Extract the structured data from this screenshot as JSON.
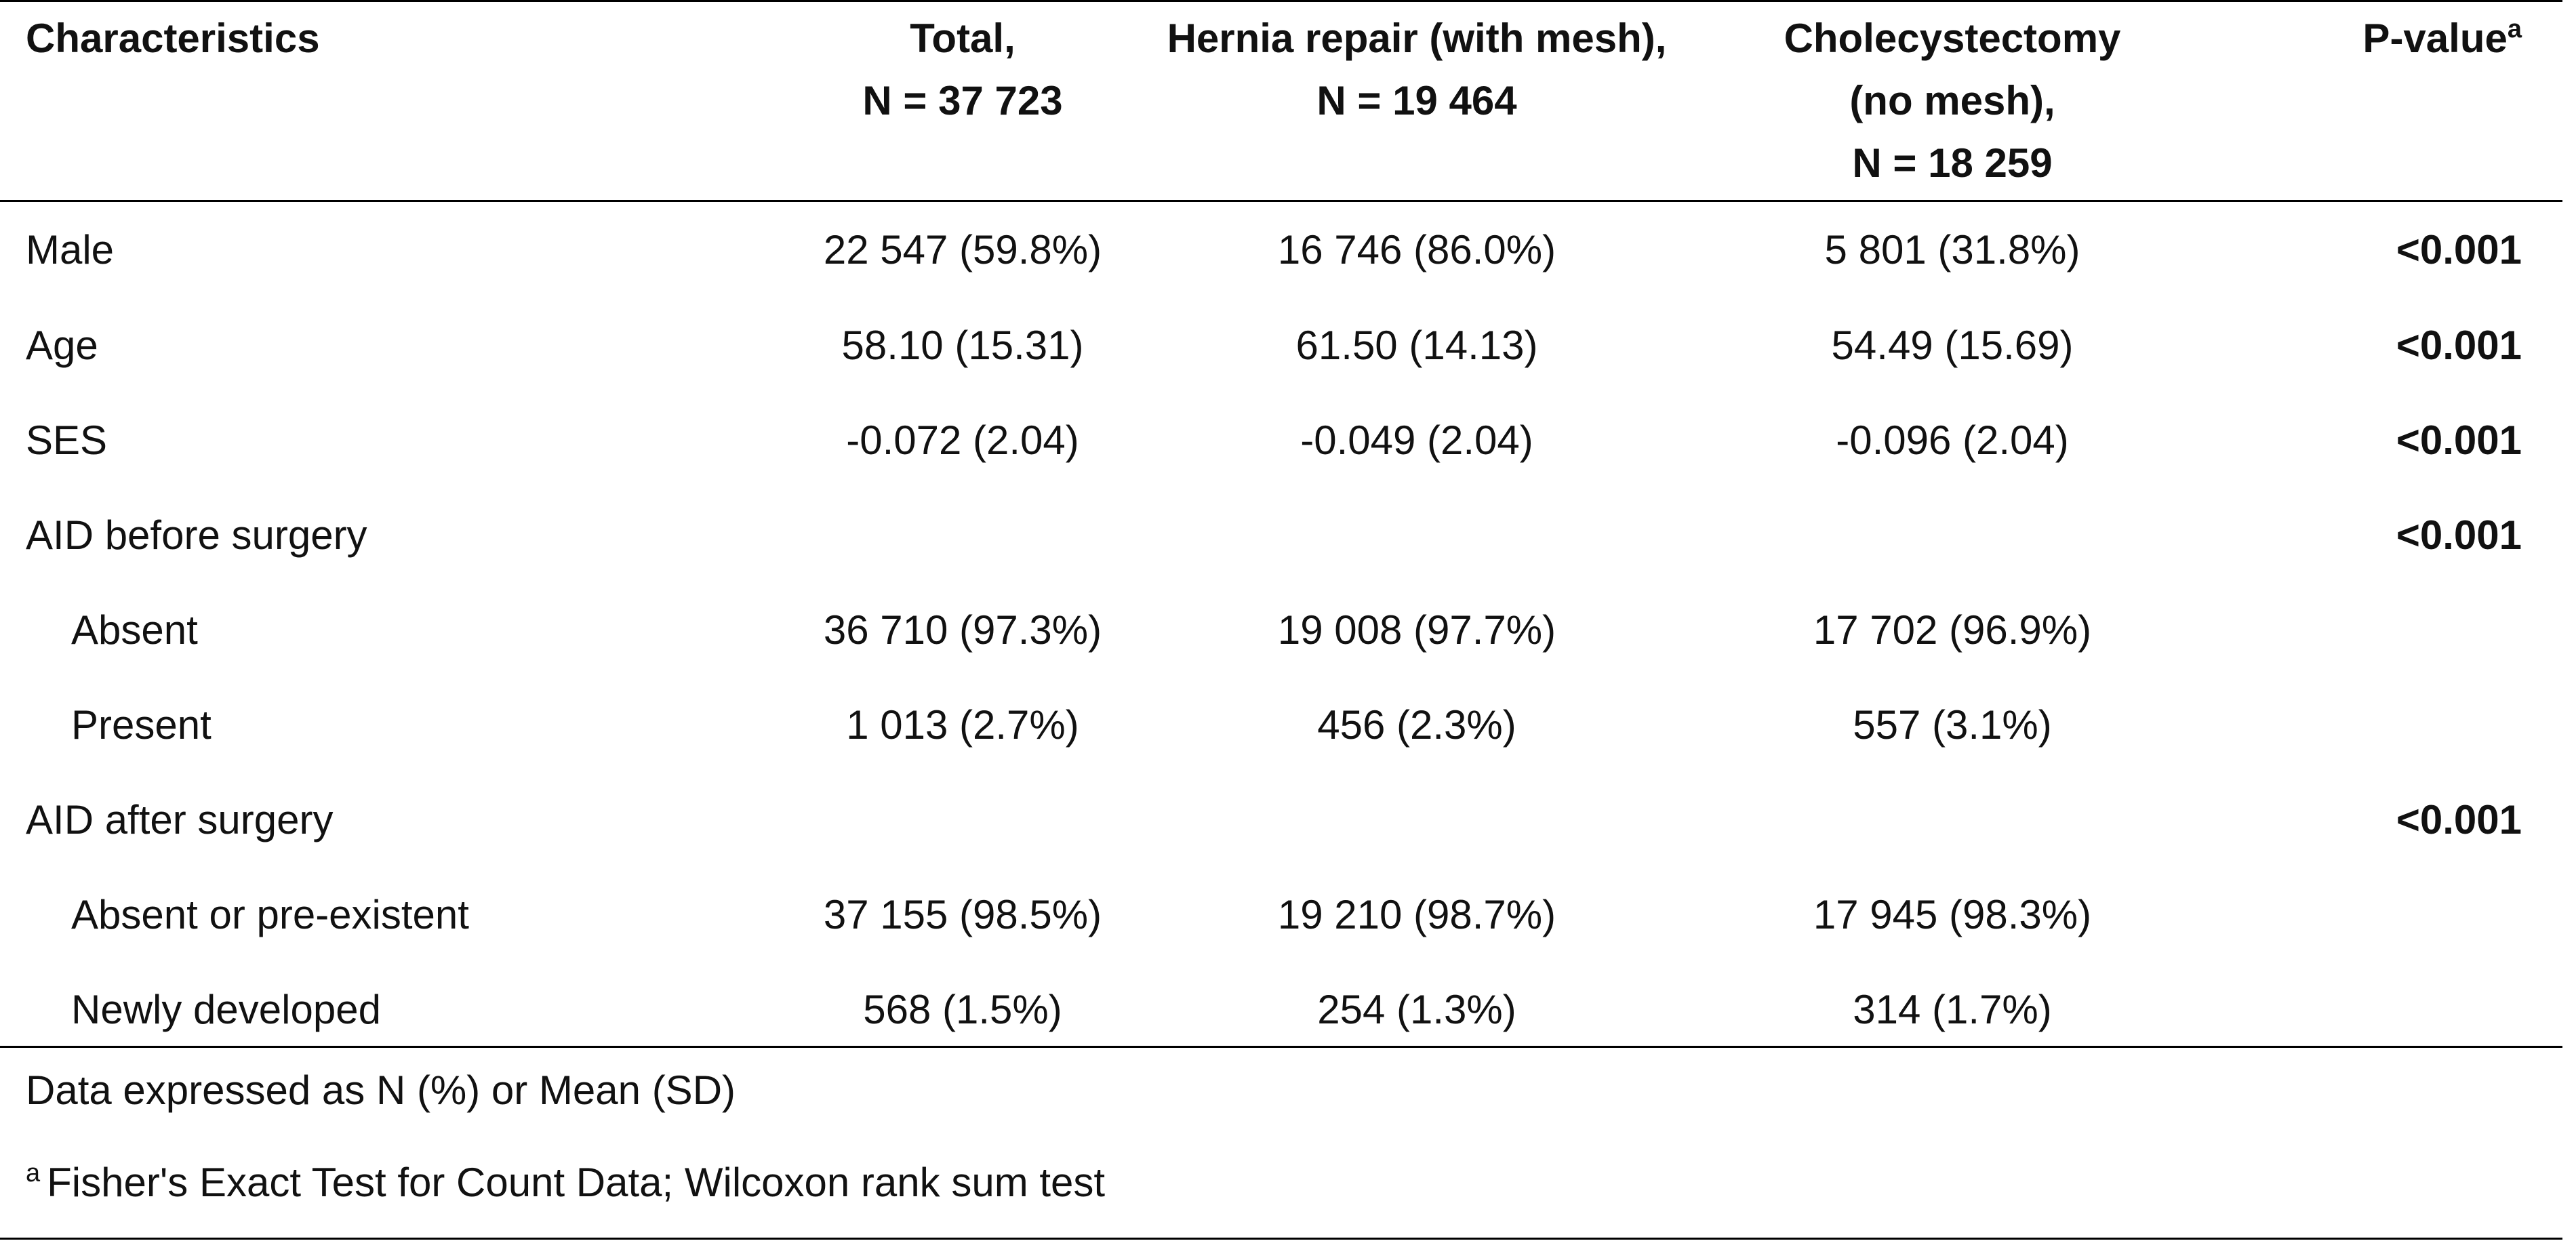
{
  "table": {
    "headers": [
      {
        "text": "Characteristics",
        "sup": ""
      },
      {
        "text": "Total,\nN = 37 723",
        "sup": ""
      },
      {
        "text": "Hernia repair (with mesh),\nN = 19 464",
        "sup": ""
      },
      {
        "text": "Cholecystectomy\n(no mesh),\nN = 18 259",
        "sup": ""
      },
      {
        "text": "P-value",
        "sup": "a"
      }
    ],
    "rows": [
      {
        "label": "Male",
        "indent": false,
        "total": "22 547 (59.8%)",
        "hernia": "16 746 (86.0%)",
        "chole": "5 801 (31.8%)",
        "p": "<0.001"
      },
      {
        "label": "Age",
        "indent": false,
        "total": "58.10 (15.31)",
        "hernia": "61.50 (14.13)",
        "chole": "54.49 (15.69)",
        "p": "<0.001"
      },
      {
        "label": "SES",
        "indent": false,
        "total": "-0.072 (2.04)",
        "hernia": "-0.049 (2.04)",
        "chole": "-0.096 (2.04)",
        "p": "<0.001"
      },
      {
        "label": "AID before surgery",
        "indent": false,
        "total": "",
        "hernia": "",
        "chole": "",
        "p": "<0.001"
      },
      {
        "label": "Absent",
        "indent": true,
        "total": "36 710 (97.3%)",
        "hernia": "19 008 (97.7%)",
        "chole": "17 702 (96.9%)",
        "p": ""
      },
      {
        "label": "Present",
        "indent": true,
        "total": "1 013 (2.7%)",
        "hernia": "456 (2.3%)",
        "chole": "557 (3.1%)",
        "p": ""
      },
      {
        "label": "AID after surgery",
        "indent": false,
        "total": "",
        "hernia": "",
        "chole": "",
        "p": "<0.001"
      },
      {
        "label": "Absent or pre-existent",
        "indent": true,
        "total": "37 155 (98.5%)",
        "hernia": "19 210 (98.7%)",
        "chole": "17 945 (98.3%)",
        "p": ""
      },
      {
        "label": "Newly developed",
        "indent": true,
        "total": "568 (1.5%)",
        "hernia": "254 (1.3%)",
        "chole": "314 (1.7%)",
        "p": ""
      }
    ]
  },
  "footer": {
    "note1": "Data expressed as N (%) or Mean (SD)",
    "note2_sup": "a",
    "note2": "Fisher's Exact Test for Count Data; Wilcoxon rank sum test"
  }
}
